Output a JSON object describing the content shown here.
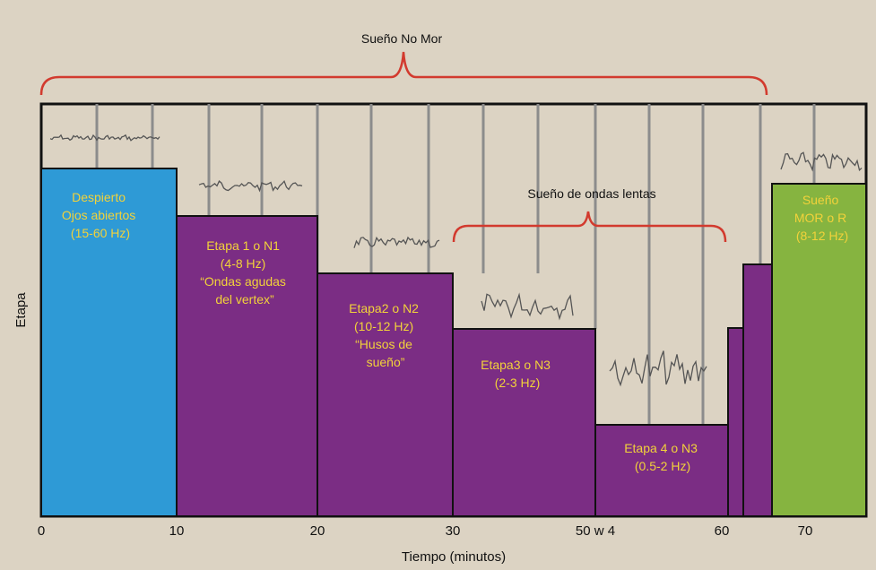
{
  "colors": {
    "background": "#dcd3c3",
    "awake": "#2e9ad6",
    "nrem": "#7b2d84",
    "rem": "#86b440",
    "label": "#f2d23a",
    "brace": "#d23a2e",
    "wave": "#555555",
    "tickline": "#8c8c8c"
  },
  "top_label": "Sueño No Mor",
  "sws_label": "Sueño de ondas lentas",
  "y_label": "Etapa",
  "x_label": "Tiempo (minutos)",
  "x_ticks": [
    "0",
    "10",
    "20",
    "30",
    "50 w 4",
    "60",
    "70"
  ],
  "stages": [
    {
      "lines": [
        "Despierto",
        "Ojos abiertos",
        "(15-60 Hz)"
      ]
    },
    {
      "lines": [
        "Etapa 1 o N1",
        "(4-8 Hz)",
        "“Ondas agudas",
        "del vertex”"
      ]
    },
    {
      "lines": [
        "Etapa2 o N2",
        "(10-12 Hz)",
        "“Husos de",
        "sueño”"
      ]
    },
    {
      "lines": [
        "Etapa3 o N3",
        "(2-3 Hz)"
      ]
    },
    {
      "lines": [
        "Etapa 4 o N3",
        "(0.5-2 Hz)"
      ]
    },
    {
      "lines": []
    },
    {
      "lines": []
    },
    {
      "lines": [
        "Sueño",
        "MOR o R",
        "(8-12 Hz)"
      ]
    }
  ]
}
